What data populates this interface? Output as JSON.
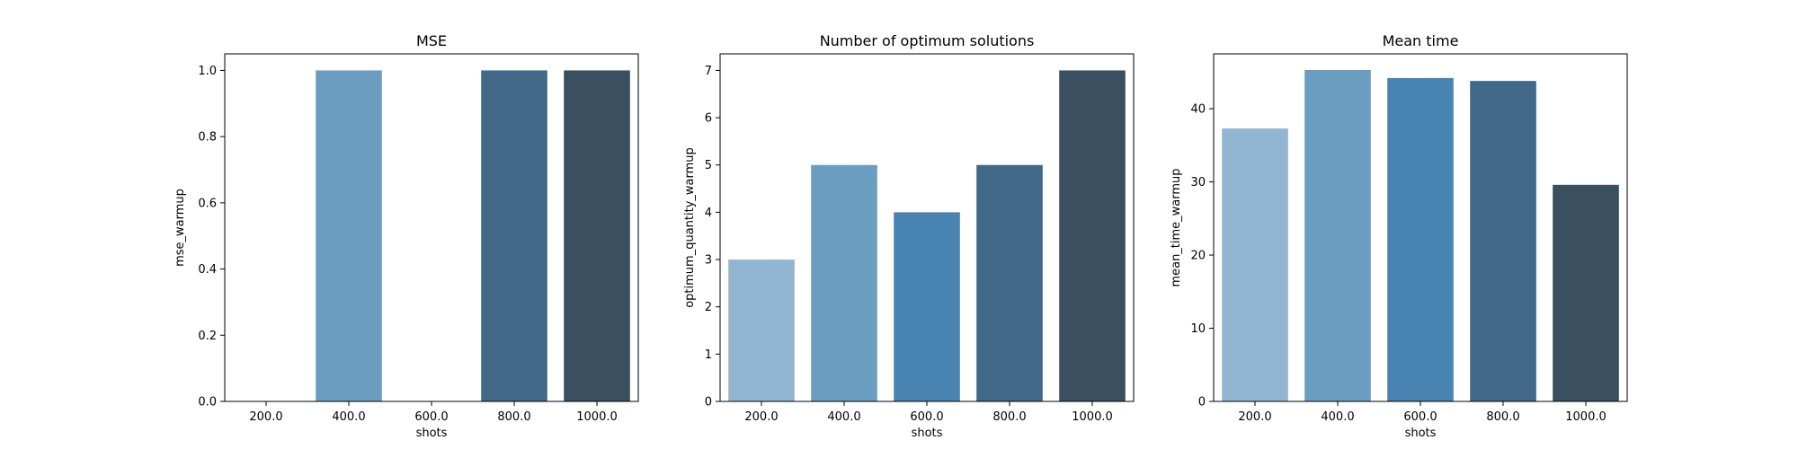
{
  "colors": [
    "#92b5d1",
    "#6b9dc1",
    "#4883b1",
    "#416886",
    "#3a4f5f"
  ],
  "chart_data": [
    {
      "type": "bar",
      "title": "MSE",
      "xlabel": "shots",
      "ylabel": "mse_warmup",
      "categories": [
        "200.0",
        "400.0",
        "600.0",
        "800.0",
        "1000.0"
      ],
      "values": [
        0,
        1.0,
        0,
        1.0,
        1.0
      ],
      "ylim": [
        0,
        1.05
      ],
      "yticks": [
        "0.0",
        "0.2",
        "0.4",
        "0.6",
        "0.8",
        "1.0"
      ],
      "grid": false,
      "legend": "none"
    },
    {
      "type": "bar",
      "title": "Number of optimum solutions",
      "xlabel": "shots",
      "ylabel": "optimum_quantity_warmup",
      "categories": [
        "200.0",
        "400.0",
        "600.0",
        "800.0",
        "1000.0"
      ],
      "values": [
        3,
        5,
        4,
        5,
        7
      ],
      "ylim": [
        0,
        7.35
      ],
      "yticks": [
        "0",
        "1",
        "2",
        "3",
        "4",
        "5",
        "6",
        "7"
      ],
      "grid": false,
      "legend": "none"
    },
    {
      "type": "bar",
      "title": "Mean time",
      "xlabel": "shots",
      "ylabel": "mean_time_warmup",
      "categories": [
        "200.0",
        "400.0",
        "600.0",
        "800.0",
        "1000.0"
      ],
      "values": [
        37.3,
        45.3,
        44.2,
        43.8,
        29.6
      ],
      "ylim": [
        0,
        47.5
      ],
      "yticks": [
        "0",
        "10",
        "20",
        "30",
        "40"
      ],
      "grid": false,
      "legend": "none"
    }
  ]
}
